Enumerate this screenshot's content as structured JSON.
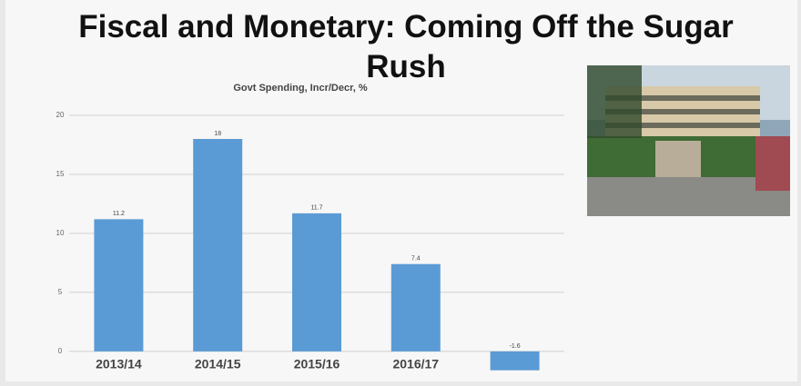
{
  "slide_title": "Fiscal and Monetary: Coming Off the Sugar Rush",
  "chart_data": {
    "type": "bar",
    "title": "Govt Spending, Incr/Decr, %",
    "categories": [
      "2013/14",
      "2014/15",
      "2015/16",
      "2016/17",
      null
    ],
    "values": [
      11.2,
      18,
      11.7,
      7.4,
      -1.6
    ],
    "color": "#5b9bd5",
    "ylim": [
      -2,
      20
    ],
    "yticks": [
      0,
      5,
      10,
      15,
      20
    ],
    "grid": true
  }
}
